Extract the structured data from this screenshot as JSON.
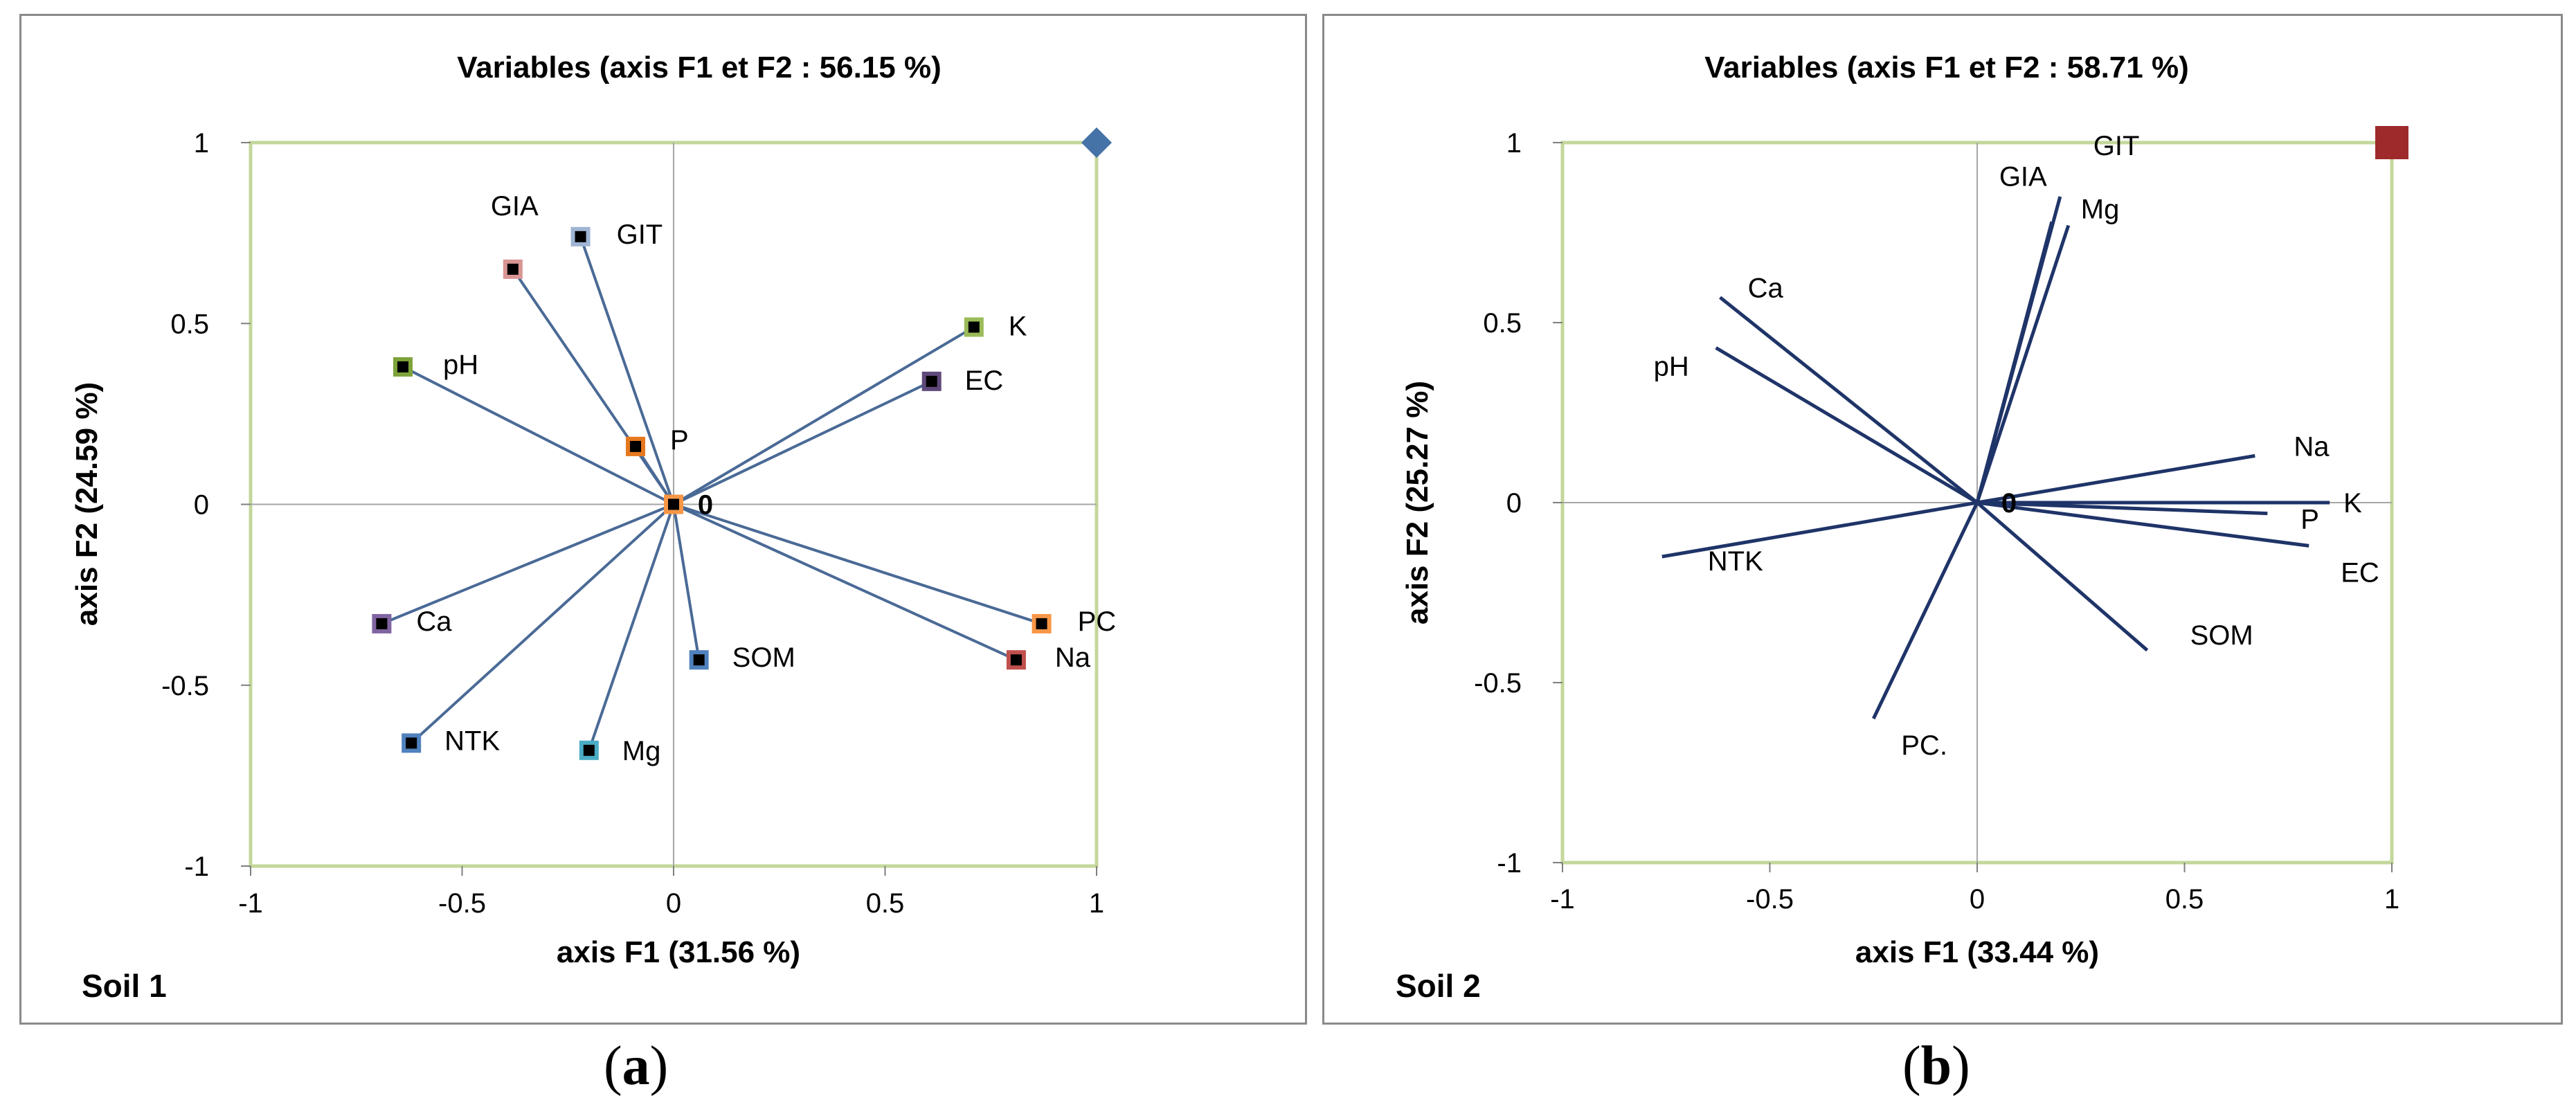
{
  "panels": [
    {
      "id": "a",
      "caption_letter": "a",
      "chart_data": {
        "type": "scatter",
        "subtype": "correlation-circle-vectors",
        "title": "Variables (axis F1 et F2 : 56.15 %)",
        "xlabel": "axis F1 (31.56 %)",
        "ylabel": "axis F2 (24.59 %)",
        "corner_label": "Soil 1",
        "xlim": [
          -1,
          1
        ],
        "ylim": [
          -1,
          1
        ],
        "xticks": [
          "-1",
          "-0.5",
          "0",
          "0.5",
          "1"
        ],
        "yticks": [
          "1",
          "0.5",
          "0",
          "-0.5",
          "-1"
        ],
        "marker_style": "squares",
        "vector_color": "#4a6a96",
        "points": [
          {
            "label": "GIT",
            "x": -0.22,
            "y": 0.74,
            "color": "#9fb5d3"
          },
          {
            "label": "GIA",
            "x": -0.38,
            "y": 0.65,
            "color": "#d99694"
          },
          {
            "label": "pH",
            "x": -0.64,
            "y": 0.38,
            "color": "#7ea33a"
          },
          {
            "label": "P",
            "x": -0.09,
            "y": 0.16,
            "color": "#e6781e"
          },
          {
            "label": "K",
            "x": 0.71,
            "y": 0.49,
            "color": "#9bbb59"
          },
          {
            "label": "EC",
            "x": 0.61,
            "y": 0.34,
            "color": "#5f497a"
          },
          {
            "label": "PC",
            "x": 0.87,
            "y": -0.33,
            "color": "#f79646"
          },
          {
            "label": "Na",
            "x": 0.81,
            "y": -0.43,
            "color": "#c0504d"
          },
          {
            "label": "SOM",
            "x": 0.06,
            "y": -0.43,
            "color": "#4f81bd"
          },
          {
            "label": "Mg",
            "x": -0.2,
            "y": -0.68,
            "color": "#4bacc6"
          },
          {
            "label": "NTK",
            "x": -0.62,
            "y": -0.66,
            "color": "#4f81bd"
          },
          {
            "label": "Ca",
            "x": -0.69,
            "y": -0.33,
            "color": "#8064a2"
          }
        ],
        "origin_marker_color": "#f79646",
        "origin_label": "0",
        "corner_marker": {
          "shape": "diamond",
          "x": 1,
          "y": 1,
          "color": "#4572a7"
        }
      }
    },
    {
      "id": "b",
      "caption_letter": "b",
      "chart_data": {
        "type": "scatter",
        "subtype": "correlation-circle-vectors",
        "title": "Variables (axis F1 et F2 : 58.71 %)",
        "xlabel": "axis F1 (33.44 %)",
        "ylabel": "axis F2 (25.27 %)",
        "corner_label": "Soil 2",
        "xlim": [
          -1,
          1
        ],
        "ylim": [
          -1,
          1
        ],
        "xticks": [
          "-1",
          "-0.5",
          "0",
          "0.5",
          "1"
        ],
        "yticks": [
          "1",
          "0.5",
          "0",
          "-0.5",
          "-1"
        ],
        "marker_style": "lines",
        "vector_color": "#1f3468",
        "points": [
          {
            "label": "GIT",
            "x": 0.2,
            "y": 0.85
          },
          {
            "label": "GIA",
            "x": 0.18,
            "y": 0.78
          },
          {
            "label": "Mg",
            "x": 0.22,
            "y": 0.77
          },
          {
            "label": "Ca",
            "x": -0.62,
            "y": 0.57
          },
          {
            "label": "pH",
            "x": -0.63,
            "y": 0.43
          },
          {
            "label": "Na",
            "x": 0.67,
            "y": 0.13
          },
          {
            "label": "K",
            "x": 0.85,
            "y": 0.0
          },
          {
            "label": "P",
            "x": 0.7,
            "y": -0.03
          },
          {
            "label": "EC",
            "x": 0.8,
            "y": -0.12
          },
          {
            "label": "SOM",
            "x": 0.41,
            "y": -0.41
          },
          {
            "label": "PC.",
            "x": -0.25,
            "y": -0.6
          },
          {
            "label": "NTK",
            "x": -0.76,
            "y": -0.15
          }
        ],
        "origin_label": "0",
        "corner_marker": {
          "shape": "square",
          "x": 1,
          "y": 1,
          "color": "#9e2a2b"
        }
      }
    }
  ]
}
